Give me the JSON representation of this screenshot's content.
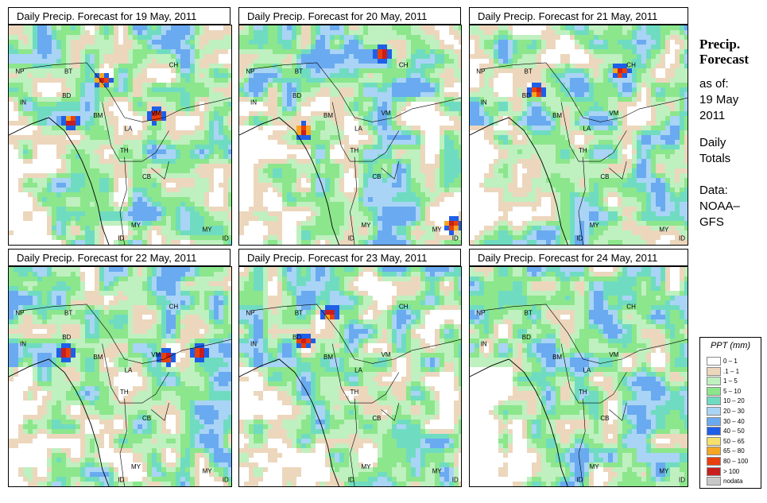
{
  "panels": [
    {
      "title": "Daily Precip. Forecast for  19 May, 2011"
    },
    {
      "title": "Daily Precip. Forecast for  20 May, 2011"
    },
    {
      "title": "Daily Precip. Forecast for  21 May, 2011"
    },
    {
      "title": "Daily Precip. Forecast for  22 May, 2011"
    },
    {
      "title": "Daily Precip. Forecast for  23 May, 2011"
    },
    {
      "title": "Daily Precip. Forecast for  24 May, 2011"
    }
  ],
  "country_labels": {
    "np": "NP",
    "bt": "BT",
    "bd": "BD",
    "in": "IN",
    "ch": "CH",
    "bm": "BM",
    "vm": "VM",
    "la": "LA",
    "th": "TH",
    "cb": "CB",
    "my_w": "MY",
    "my_e": "MY",
    "id_w": "ID",
    "id_e": "ID"
  },
  "sidebar": {
    "title_line1": "Precip.",
    "title_line2": "Forecast",
    "asof": "as of:",
    "date_line1": "19 May",
    "date_line2": "2011",
    "daily_line1": "Daily",
    "daily_line2": "Totals",
    "data_line1": "Data:",
    "data_line2": "NOAA–",
    "data_line3": "GFS"
  },
  "legend": {
    "title": "PPT (mm)",
    "items": [
      {
        "label": "0 – 1",
        "color": "#ffffff"
      },
      {
        "label": ".1 – 1",
        "color": "#ecd7bd"
      },
      {
        "label": "1 – 5",
        "color": "#bff0bf"
      },
      {
        "label": "5 – 10",
        "color": "#8ce68c"
      },
      {
        "label": "10 – 20",
        "color": "#6fdcc2"
      },
      {
        "label": "20 – 30",
        "color": "#a9d4f5"
      },
      {
        "label": "30 – 40",
        "color": "#6aaaf0"
      },
      {
        "label": "40 – 50",
        "color": "#1f5fe8"
      },
      {
        "label": "50 – 65",
        "color": "#f4e06a"
      },
      {
        "label": "65 – 80",
        "color": "#f5a623"
      },
      {
        "label": "80 – 100",
        "color": "#e8400c"
      },
      {
        "label": "> 100",
        "color": "#c81e1e"
      },
      {
        "label": "nodata",
        "color": "#c8c8c8"
      }
    ]
  }
}
